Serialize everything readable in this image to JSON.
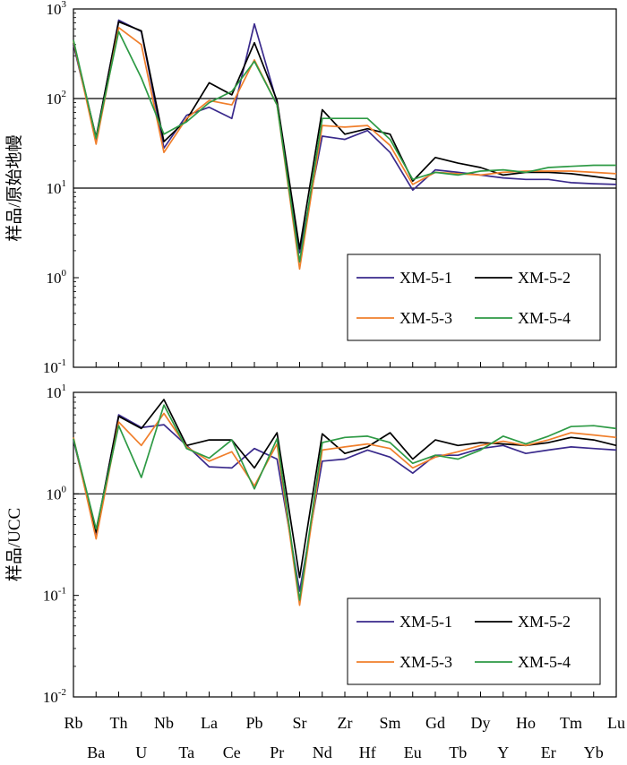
{
  "chart_data": [
    {
      "type": "line",
      "ylabel": "样品/原始地幔",
      "yscale": "log",
      "ylim": [
        0.1,
        1000
      ],
      "y_ticks": [
        {
          "value": 0.1,
          "base": "10",
          "exp": "-1"
        },
        {
          "value": 1,
          "base": "10",
          "exp": "0"
        },
        {
          "value": 10,
          "base": "10",
          "exp": "1"
        },
        {
          "value": 100,
          "base": "10",
          "exp": "2"
        },
        {
          "value": 1000,
          "base": "10",
          "exp": "3"
        }
      ],
      "reference_lines": [
        10,
        100
      ],
      "legend_position": "bottom-right",
      "categories": [
        "Rb",
        "Ba",
        "Th",
        "U",
        "Nb",
        "Ta",
        "La",
        "Ce",
        "Pb",
        "Pr",
        "Sr",
        "Nd",
        "Zr",
        "Hf",
        "Sm",
        "Eu",
        "Gd",
        "Tb",
        "Dy",
        "Y",
        "Ho",
        "Er",
        "Tm",
        "Yb",
        "Lu"
      ],
      "series": [
        {
          "name": "XM-5-1",
          "color": "#3a2a8c",
          "values": [
            400,
            35,
            750,
            560,
            28,
            65,
            80,
            60,
            680,
            90,
            1.9,
            38,
            35,
            44,
            25,
            9.5,
            16,
            15,
            14,
            13,
            12.5,
            12.5,
            11.5,
            11.2,
            11
          ]
        },
        {
          "name": "XM-5-2",
          "color": "#000000",
          "values": [
            420,
            37,
            720,
            570,
            33,
            58,
            150,
            110,
            420,
            95,
            2.1,
            75,
            40,
            46,
            40,
            12,
            22,
            19,
            17,
            14,
            15,
            15,
            14.5,
            13.5,
            12.5
          ]
        },
        {
          "name": "XM-5-3",
          "color": "#f07f2c",
          "values": [
            440,
            31,
            620,
            400,
            25,
            60,
            95,
            85,
            270,
            85,
            1.25,
            50,
            48,
            50,
            30,
            11,
            15,
            14.5,
            14,
            15,
            15.5,
            15.5,
            15.5,
            15,
            14.5
          ]
        },
        {
          "name": "XM-5-4",
          "color": "#2e9a45",
          "values": [
            450,
            36,
            560,
            170,
            40,
            55,
            90,
            120,
            260,
            85,
            1.5,
            60,
            60,
            60,
            35,
            12.5,
            15,
            14,
            15.5,
            16,
            15,
            17,
            17.5,
            18,
            18
          ]
        }
      ]
    },
    {
      "type": "line",
      "ylabel": "样品/UCC",
      "yscale": "log",
      "ylim": [
        0.01,
        10
      ],
      "y_ticks": [
        {
          "value": 0.01,
          "base": "10",
          "exp": "-2"
        },
        {
          "value": 0.1,
          "base": "10",
          "exp": "-1"
        },
        {
          "value": 1,
          "base": "10",
          "exp": "0"
        },
        {
          "value": 10,
          "base": "10",
          "exp": "1"
        }
      ],
      "reference_lines": [
        1
      ],
      "legend_position": "bottom-right",
      "categories": [
        "Rb",
        "Ba",
        "Th",
        "U",
        "Nb",
        "Ta",
        "La",
        "Ce",
        "Pb",
        "Pr",
        "Sr",
        "Nd",
        "Zr",
        "Hf",
        "Sm",
        "Eu",
        "Gd",
        "Tb",
        "Dy",
        "Y",
        "Ho",
        "Er",
        "Tm",
        "Yb",
        "Lu"
      ],
      "series": [
        {
          "name": "XM-5-1",
          "color": "#3a2a8c",
          "values": [
            3.4,
            0.4,
            6.0,
            4.5,
            4.8,
            3.0,
            1.85,
            1.8,
            2.8,
            2.2,
            0.11,
            2.1,
            2.2,
            2.7,
            2.3,
            1.6,
            2.4,
            2.4,
            2.8,
            3.0,
            2.5,
            2.7,
            2.9,
            2.8,
            2.7
          ]
        },
        {
          "name": "XM-5-2",
          "color": "#000000",
          "values": [
            3.5,
            0.42,
            5.8,
            4.4,
            8.5,
            3.0,
            3.4,
            3.4,
            1.8,
            4.0,
            0.15,
            3.9,
            2.5,
            2.9,
            4.0,
            2.2,
            3.4,
            3.0,
            3.2,
            3.1,
            3.0,
            3.2,
            3.6,
            3.4,
            3.0
          ]
        },
        {
          "name": "XM-5-3",
          "color": "#f07f2c",
          "values": [
            3.6,
            0.36,
            5.1,
            3.0,
            6.2,
            2.9,
            2.1,
            2.6,
            1.2,
            3.1,
            0.08,
            2.7,
            2.9,
            3.1,
            2.8,
            1.8,
            2.3,
            2.6,
            3.0,
            3.3,
            3.0,
            3.4,
            4.0,
            3.8,
            3.6
          ]
        },
        {
          "name": "XM-5-4",
          "color": "#2e9a45",
          "values": [
            3.5,
            0.45,
            4.7,
            1.45,
            7.5,
            2.8,
            2.25,
            3.4,
            1.12,
            3.5,
            0.09,
            3.2,
            3.6,
            3.7,
            3.2,
            2.0,
            2.4,
            2.2,
            2.7,
            3.7,
            3.1,
            3.7,
            4.6,
            4.7,
            4.4
          ]
        }
      ]
    }
  ]
}
